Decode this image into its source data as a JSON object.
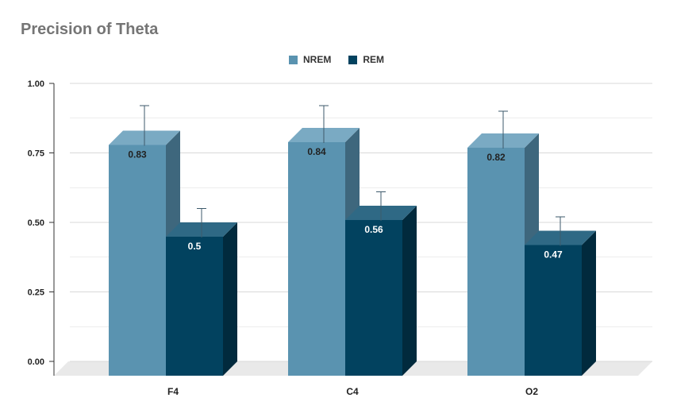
{
  "chart_data": {
    "type": "bar",
    "title": "Precision of Theta",
    "xlabel": "",
    "ylabel": "",
    "categories": [
      "F4",
      "C4",
      "O2"
    ],
    "series": [
      {
        "name": "NREM",
        "values": [
          0.83,
          0.84,
          0.82
        ],
        "error": [
          0.09,
          0.08,
          0.08
        ],
        "labels": [
          "0.83",
          "0.84",
          "0.82"
        ]
      },
      {
        "name": "REM",
        "values": [
          0.5,
          0.56,
          0.47
        ],
        "error": [
          0.05,
          0.05,
          0.05
        ],
        "labels": [
          "0.5",
          "0.56",
          "0.47"
        ]
      }
    ],
    "ylim": [
      0,
      1
    ],
    "yticks": [
      "0.00",
      "0.25",
      "0.50",
      "0.75",
      "1.00"
    ],
    "grid": true,
    "legend_position": "top-center",
    "style": "3d"
  },
  "colors": {
    "nrem_front": "#5a93b0",
    "nrem_top": "#7aaac3",
    "nrem_side": "#3e677d",
    "rem_front": "#02425f",
    "rem_top": "#2f6985",
    "rem_side": "#012a3d",
    "grid": "#d9d9d9",
    "floor": "#e9e9e9",
    "error_bar": "#3d5a6b"
  }
}
